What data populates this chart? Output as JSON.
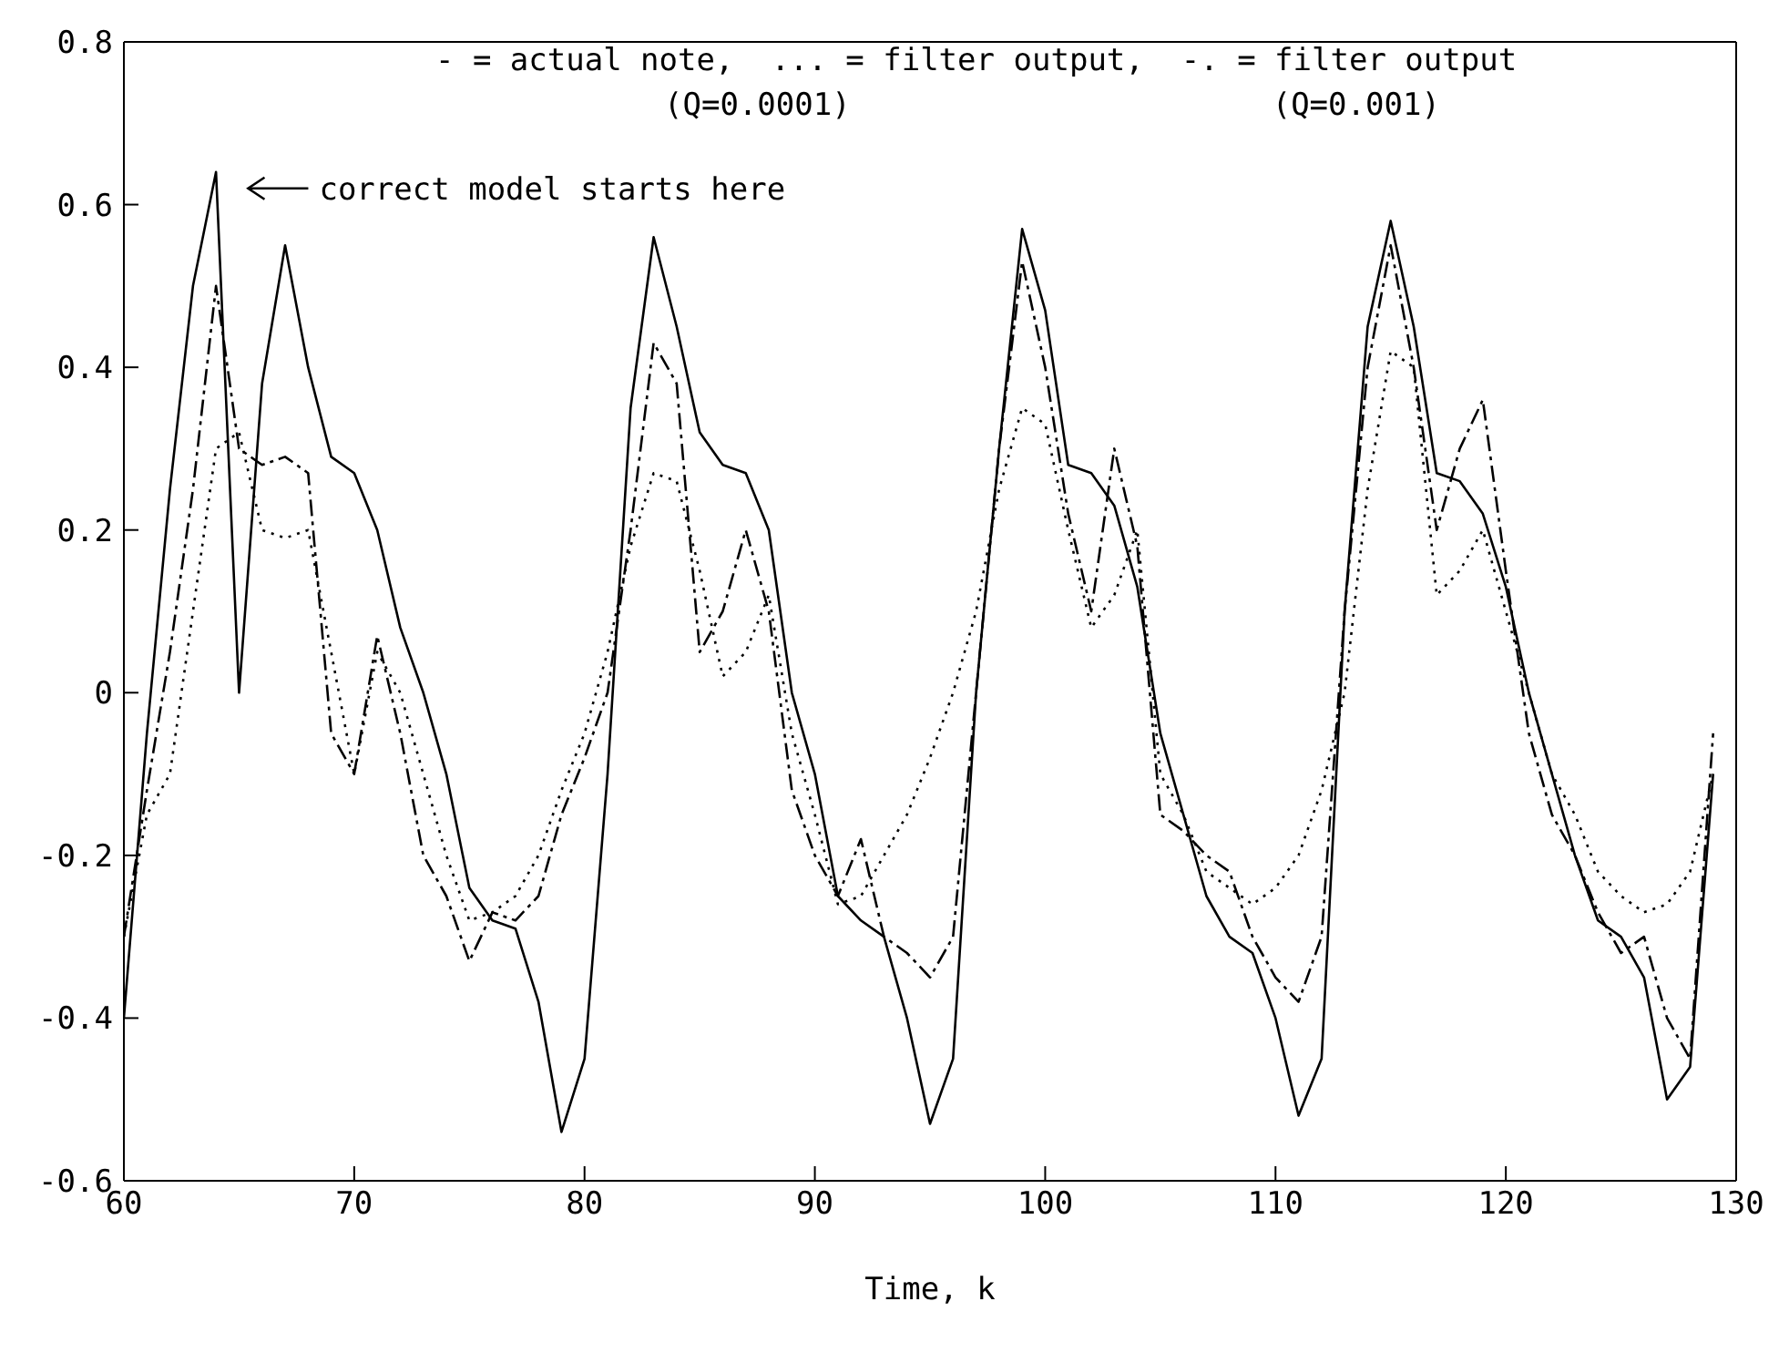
{
  "chart_data": {
    "type": "line",
    "xlabel": "Time, k",
    "xlim": [
      60,
      130
    ],
    "xticks": [
      60,
      70,
      80,
      90,
      100,
      110,
      120,
      130
    ],
    "ylim": [
      -0.6,
      0.8
    ],
    "yticks": [
      -0.6,
      -0.4,
      -0.2,
      0,
      0.2,
      0.4,
      0.6,
      0.8
    ],
    "marker": "none",
    "x": [
      60,
      61,
      62,
      63,
      64,
      65,
      66,
      67,
      68,
      69,
      70,
      71,
      72,
      73,
      74,
      75,
      76,
      77,
      78,
      79,
      80,
      81,
      82,
      83,
      84,
      85,
      86,
      87,
      88,
      89,
      90,
      91,
      92,
      93,
      94,
      95,
      96,
      97,
      98,
      99,
      100,
      101,
      102,
      103,
      104,
      105,
      106,
      107,
      108,
      109,
      110,
      111,
      112,
      113,
      114,
      115,
      116,
      117,
      118,
      119,
      120,
      121,
      122,
      123,
      124,
      125,
      126,
      127,
      128,
      129
    ],
    "series": [
      {
        "color": "#000000",
        "line_style": "solid",
        "values": [
          -0.4,
          -0.05,
          0.25,
          0.5,
          0.64,
          0.0,
          0.38,
          0.55,
          0.4,
          0.29,
          0.27,
          0.2,
          0.08,
          0.0,
          -0.1,
          -0.24,
          -0.28,
          -0.29,
          -0.38,
          -0.54,
          -0.45,
          -0.1,
          0.35,
          0.56,
          0.45,
          0.32,
          0.28,
          0.27,
          0.2,
          0.0,
          -0.1,
          -0.25,
          -0.28,
          -0.3,
          -0.4,
          -0.53,
          -0.45,
          0.0,
          0.3,
          0.57,
          0.47,
          0.28,
          0.27,
          0.23,
          0.13,
          -0.05,
          -0.15,
          -0.25,
          -0.3,
          -0.32,
          -0.4,
          -0.52,
          -0.45,
          0.1,
          0.45,
          0.58,
          0.45,
          0.27,
          0.26,
          0.22,
          0.13,
          0.0,
          -0.1,
          -0.2,
          -0.28,
          -0.3,
          -0.35,
          -0.5,
          -0.46,
          -0.1
        ]
      },
      {
        "color": "#000000",
        "line_style": "dotted",
        "values": [
          -0.3,
          -0.15,
          -0.1,
          0.1,
          0.3,
          0.32,
          0.2,
          0.19,
          0.2,
          0.05,
          -0.1,
          0.05,
          0.0,
          -0.1,
          -0.2,
          -0.28,
          -0.27,
          -0.25,
          -0.2,
          -0.12,
          -0.05,
          0.05,
          0.18,
          0.27,
          0.26,
          0.15,
          0.02,
          0.05,
          0.12,
          -0.05,
          -0.15,
          -0.26,
          -0.25,
          -0.2,
          -0.15,
          -0.08,
          0.0,
          0.1,
          0.25,
          0.35,
          0.33,
          0.2,
          0.08,
          0.12,
          0.2,
          -0.1,
          -0.15,
          -0.22,
          -0.24,
          -0.26,
          -0.24,
          -0.2,
          -0.12,
          0.0,
          0.25,
          0.42,
          0.4,
          0.12,
          0.15,
          0.2,
          0.1,
          0.0,
          -0.1,
          -0.15,
          -0.22,
          -0.25,
          -0.27,
          -0.26,
          -0.22,
          -0.1
        ]
      },
      {
        "color": "#000000",
        "line_style": "dashed",
        "values": [
          -0.3,
          -0.12,
          0.05,
          0.25,
          0.5,
          0.3,
          0.28,
          0.29,
          0.27,
          -0.05,
          -0.1,
          0.07,
          -0.05,
          -0.2,
          -0.25,
          -0.33,
          -0.27,
          -0.28,
          -0.25,
          -0.15,
          -0.08,
          0.0,
          0.2,
          0.43,
          0.38,
          0.05,
          0.1,
          0.2,
          0.1,
          -0.12,
          -0.2,
          -0.25,
          -0.18,
          -0.3,
          -0.32,
          -0.35,
          -0.3,
          0.0,
          0.3,
          0.53,
          0.4,
          0.22,
          0.1,
          0.3,
          0.18,
          -0.15,
          -0.17,
          -0.2,
          -0.22,
          -0.3,
          -0.35,
          -0.38,
          -0.3,
          0.1,
          0.4,
          0.55,
          0.4,
          0.2,
          0.3,
          0.36,
          0.15,
          -0.05,
          -0.15,
          -0.2,
          -0.27,
          -0.32,
          -0.3,
          -0.4,
          -0.45,
          -0.05
        ]
      }
    ],
    "annotations": [
      "- = actual note,  ... = filter output,  -. = filter output",
      "(Q=0.0001)",
      "(Q=0.001)",
      "correct model starts here"
    ]
  }
}
